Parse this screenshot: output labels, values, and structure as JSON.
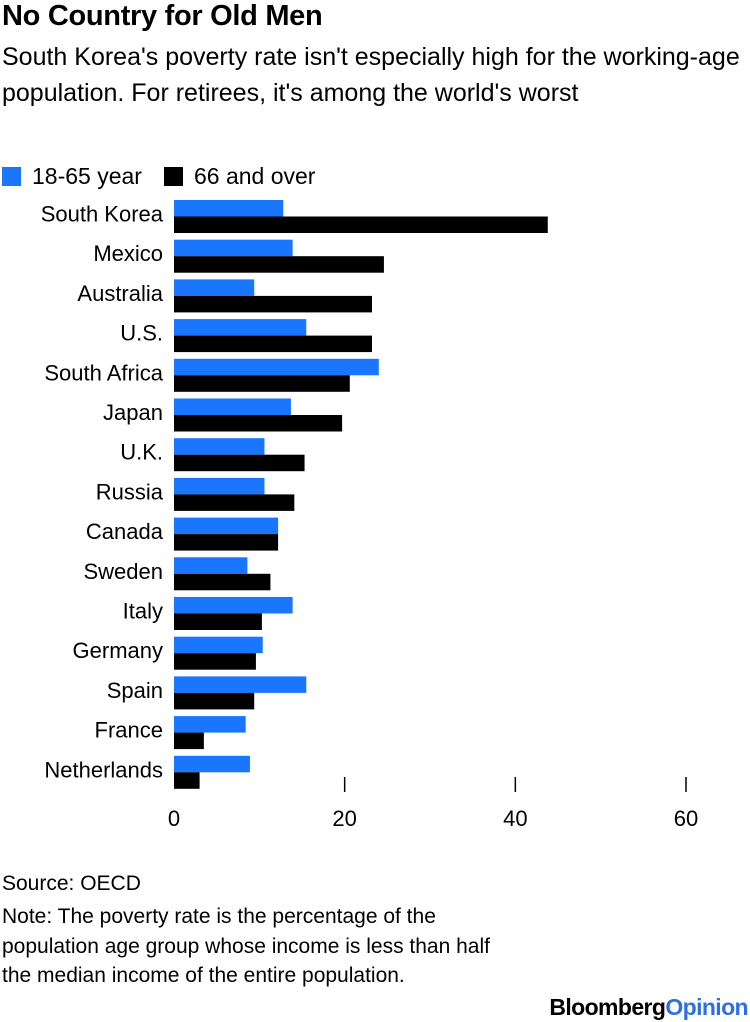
{
  "title": "No Country for Old Men",
  "subtitle": "South Korea's poverty rate isn't especially high for the working-age population. For retirees, it's among the world's worst",
  "legend": [
    {
      "label": "18-65 year",
      "color": "#1a75ff"
    },
    {
      "label": "66 and over",
      "color": "#000000"
    }
  ],
  "chart_data": {
    "type": "bar",
    "orientation": "horizontal",
    "categories": [
      "South Korea",
      "Mexico",
      "Australia",
      "U.S.",
      "South Africa",
      "Japan",
      "U.K.",
      "Russia",
      "Canada",
      "Sweden",
      "Italy",
      "Germany",
      "Spain",
      "France",
      "Netherlands"
    ],
    "series": [
      {
        "name": "18-65 year",
        "color": "#1a75ff",
        "values": [
          12.8,
          13.9,
          9.4,
          15.5,
          24.0,
          13.7,
          10.6,
          10.6,
          12.2,
          8.6,
          13.9,
          10.4,
          15.5,
          8.4,
          8.9
        ]
      },
      {
        "name": "66 and over",
        "color": "#000000",
        "values": [
          43.8,
          24.6,
          23.2,
          23.2,
          20.6,
          19.7,
          15.3,
          14.1,
          12.2,
          11.3,
          10.3,
          9.6,
          9.4,
          3.5,
          3.0
        ]
      }
    ],
    "xlim": [
      0,
      60
    ],
    "xticks": [
      "0",
      "20",
      "40",
      "60"
    ],
    "grid": false,
    "legend_position": "top-left"
  },
  "source": "Source: OECD",
  "note": "Note: The poverty rate is the percentage of the population age group whose income is less than half the median income of the entire population.",
  "brand": {
    "part1": "Bloomberg",
    "part2": "Opinion"
  }
}
